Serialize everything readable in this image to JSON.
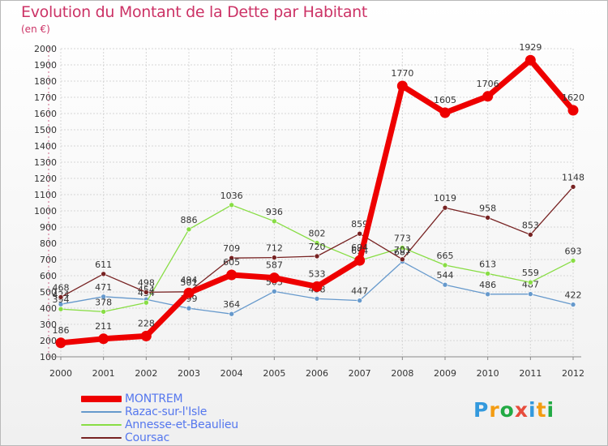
{
  "title": "Evolution du Montant de la Dette par Habitant",
  "subtitle": "(en €)",
  "logo_text": "Proxiti",
  "chart_data": {
    "type": "line",
    "title": "Evolution du Montant de la Dette par Habitant",
    "subtitle": "(en €)",
    "xlabel": "",
    "ylabel": "",
    "x": [
      "2000",
      "2001",
      "2002",
      "2003",
      "2004",
      "2005",
      "2006",
      "2007",
      "2008",
      "2009",
      "2010",
      "2011",
      "2012"
    ],
    "ylim": [
      100,
      2000
    ],
    "yticks": [
      100,
      200,
      300,
      400,
      500,
      600,
      700,
      800,
      900,
      1000,
      1100,
      1200,
      1300,
      1400,
      1500,
      1600,
      1700,
      1800,
      1900,
      2000
    ],
    "grid": true,
    "legend_position": "bottom-left",
    "series": [
      {
        "name": "MONTREM",
        "color": "#ee0000",
        "width": 7,
        "marker": 6.5,
        "values": [
          186,
          211,
          228,
          494,
          605,
          587,
          533,
          694,
          1770,
          1605,
          1706,
          1929,
          1620
        ]
      },
      {
        "name": "Razac-sur-l'Isle",
        "color": "#6699cc",
        "width": 1.3,
        "marker": 3,
        "values": [
          424,
          471,
          454,
          399,
          364,
          503,
          458,
          447,
          687,
          544,
          486,
          487,
          422
        ]
      },
      {
        "name": "Annesse-et-Beaulieu",
        "color": "#88dd44",
        "width": 1.3,
        "marker": 3,
        "values": [
          394,
          378,
          434,
          886,
          1036,
          936,
          802,
          694,
          773,
          665,
          613,
          559,
          693
        ]
      },
      {
        "name": "Coursac",
        "color": "#772222",
        "width": 1.3,
        "marker": 3,
        "values": [
          468,
          611,
          498,
          501,
          709,
          712,
          720,
          859,
          701,
          1019,
          958,
          853,
          1148
        ]
      }
    ]
  }
}
